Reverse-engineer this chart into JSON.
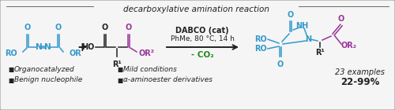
{
  "title": "decarboxylative amination reaction",
  "bg_color": "#f5f5f5",
  "border_color": "#888888",
  "blue_color": "#3399cc",
  "purple_color": "#993399",
  "green_color": "#228822",
  "condition_line1": "DABCO (cat)",
  "condition_line2": "PhMe, 80 °C, 14 h",
  "condition_line3": "- CO₂",
  "figsize": [
    5.0,
    1.4
  ],
  "dpi": 100
}
